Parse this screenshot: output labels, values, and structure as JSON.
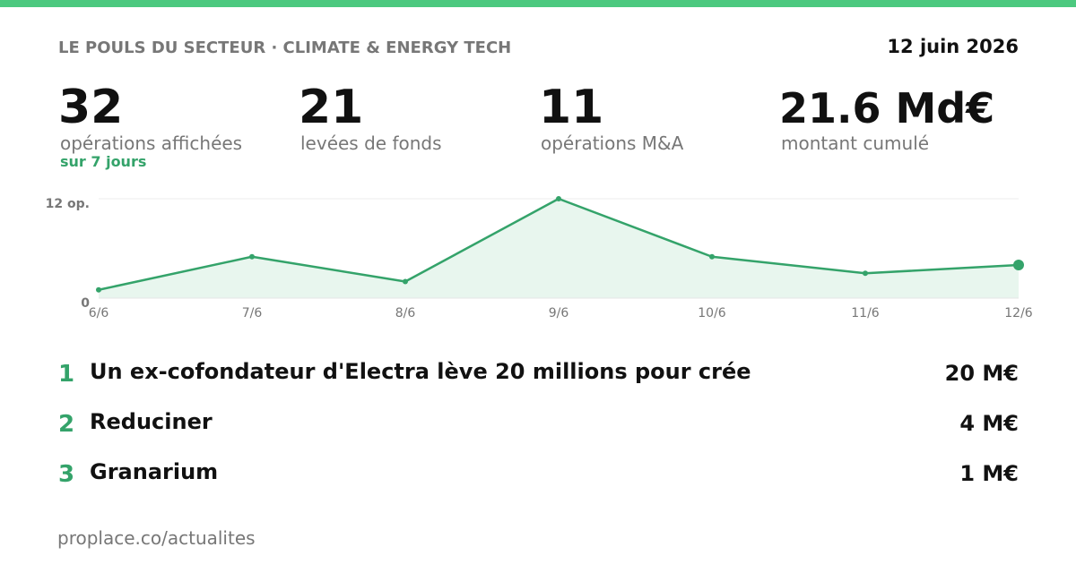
{
  "header": {
    "title": "LE POULS DU SECTEUR · CLIMATE & ENERGY TECH",
    "date": "12 juin 2026"
  },
  "stats": [
    {
      "value": "32",
      "label": "opérations affichées",
      "note": "sur 7 jours"
    },
    {
      "value": "21",
      "label": "levées de fonds"
    },
    {
      "value": "11",
      "label": "opérations M&A"
    },
    {
      "value": "21.6 Md€",
      "label": "montant cumulé"
    }
  ],
  "chart_data": {
    "type": "line",
    "categories": [
      "6/6",
      "7/6",
      "8/6",
      "9/6",
      "10/6",
      "11/6",
      "12/6"
    ],
    "series": [
      {
        "color": "#34a36a",
        "values": [
          1,
          5,
          2,
          12,
          5,
          3,
          4
        ]
      }
    ],
    "ylim": [
      0,
      12
    ],
    "yticks": [
      0,
      {
        "value": 12,
        "label": "12 op."
      }
    ],
    "grid": true
  },
  "list": [
    {
      "rank": "1",
      "title": "Un ex-cofondateur d'Electra lève 20 millions pour crée",
      "amount": "20 M€"
    },
    {
      "rank": "2",
      "title": "Reduciner",
      "amount": "4 M€"
    },
    {
      "rank": "3",
      "title": "Granarium",
      "amount": "1 M€"
    }
  ],
  "footer": "proplace.co/actualites"
}
